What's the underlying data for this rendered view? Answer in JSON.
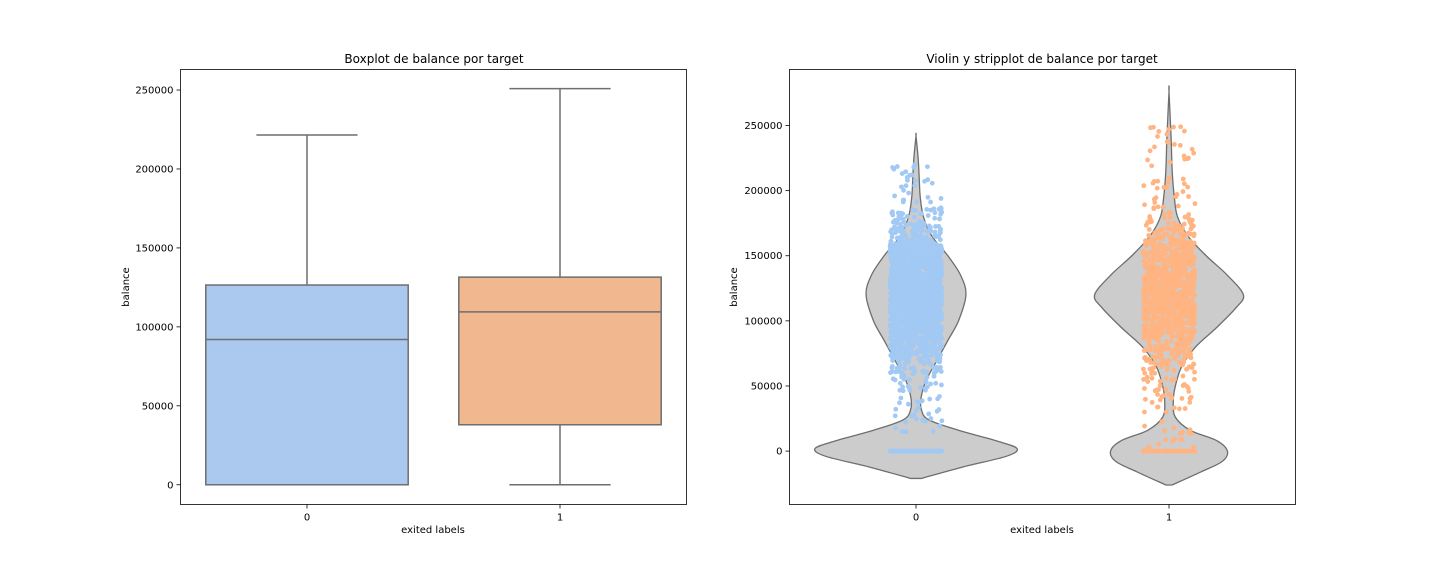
{
  "chart_data": [
    {
      "type": "box",
      "title": "Boxplot de balance por target",
      "xlabel": "exited labels",
      "ylabel": "balance",
      "categories": [
        "0",
        "1"
      ],
      "ylim": [
        -12500,
        263000
      ],
      "yticks": [
        0,
        50000,
        100000,
        150000,
        200000,
        250000
      ],
      "boxes": [
        {
          "category": "0",
          "whisker_low": 0,
          "q1": 0,
          "median": 92000,
          "q3": 126500,
          "whisker_high": 221500,
          "color": "#abc9ee"
        },
        {
          "category": "1",
          "whisker_low": 0,
          "q1": 38000,
          "median": 109500,
          "q3": 131500,
          "whisker_high": 250900,
          "color": "#f1b890"
        }
      ],
      "grid": false
    },
    {
      "type": "violin",
      "title": "Violin y stripplot de balance por target",
      "xlabel": "exited labels",
      "ylabel": "balance",
      "categories": [
        "0",
        "1"
      ],
      "ylim": [
        -41000,
        293000
      ],
      "yticks": [
        0,
        50000,
        100000,
        150000,
        200000,
        250000
      ],
      "violin_color": "#cccccc",
      "violins": [
        {
          "category": "0",
          "min": -21000,
          "max": 242000,
          "density": [
            [
              -21000,
              0.05
            ],
            [
              -12000,
              0.45
            ],
            [
              -4000,
              0.85
            ],
            [
              2000,
              0.95
            ],
            [
              8000,
              0.75
            ],
            [
              16000,
              0.4
            ],
            [
              24000,
              0.12
            ],
            [
              32000,
              0.05
            ],
            [
              42000,
              0.05
            ],
            [
              55000,
              0.1
            ],
            [
              70000,
              0.2
            ],
            [
              85000,
              0.3
            ],
            [
              100000,
              0.4
            ],
            [
              120000,
              0.47
            ],
            [
              135000,
              0.42
            ],
            [
              150000,
              0.3
            ],
            [
              165000,
              0.15
            ],
            [
              180000,
              0.07
            ],
            [
              195000,
              0.04
            ],
            [
              210000,
              0.03
            ],
            [
              225000,
              0.02
            ],
            [
              242000,
              0.0
            ]
          ]
        },
        {
          "category": "1",
          "min": -26000,
          "max": 276000,
          "density": [
            [
              -26000,
              0.03
            ],
            [
              -16000,
              0.3
            ],
            [
              -8000,
              0.5
            ],
            [
              0,
              0.55
            ],
            [
              8000,
              0.45
            ],
            [
              16000,
              0.2
            ],
            [
              26000,
              0.06
            ],
            [
              38000,
              0.04
            ],
            [
              50000,
              0.06
            ],
            [
              65000,
              0.12
            ],
            [
              80000,
              0.25
            ],
            [
              95000,
              0.45
            ],
            [
              110000,
              0.63
            ],
            [
              120000,
              0.7
            ],
            [
              135000,
              0.55
            ],
            [
              150000,
              0.35
            ],
            [
              165000,
              0.18
            ],
            [
              180000,
              0.08
            ],
            [
              195000,
              0.05
            ],
            [
              215000,
              0.03
            ],
            [
              240000,
              0.02
            ],
            [
              276000,
              0.0
            ]
          ]
        }
      ],
      "strip_points": [
        {
          "category": "0",
          "color": "#a1c9f4",
          "ymin": 14000,
          "ymax": 222000,
          "dense_low": 60000,
          "dense_high": 185000,
          "zero_cluster": true
        },
        {
          "category": "1",
          "color": "#ffb482",
          "ymin": 3000,
          "ymax": 251000,
          "dense_low": 70000,
          "dense_high": 175000,
          "zero_cluster": true
        }
      ],
      "grid": false
    }
  ]
}
